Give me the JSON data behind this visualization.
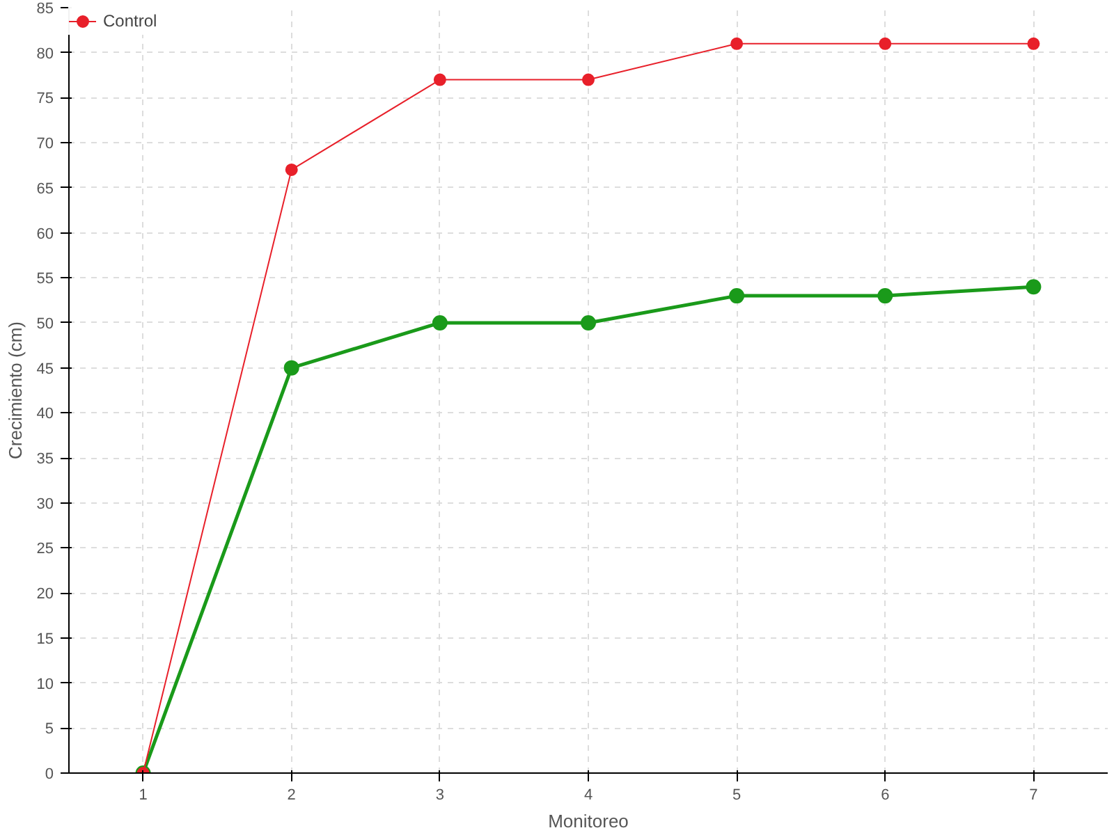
{
  "chart_data": {
    "type": "line",
    "xlabel": "Monitoreo",
    "ylabel": "Crecimiento (cm)",
    "x": [
      1,
      2,
      3,
      4,
      5,
      6,
      7
    ],
    "series": [
      {
        "color": "#1a9a1a",
        "values": [
          0,
          45,
          50,
          50,
          53,
          53,
          54
        ]
      },
      {
        "name": "Control",
        "color": "#e8202a",
        "values": [
          0,
          67,
          77,
          77,
          81,
          81,
          81
        ]
      }
    ],
    "xlim": [
      0.5,
      7.5
    ],
    "xticks": [
      1,
      2,
      3,
      4,
      5,
      6,
      7
    ],
    "ylim": [
      0,
      85
    ],
    "yticks": [
      0,
      5,
      10,
      15,
      20,
      25,
      30,
      35,
      40,
      45,
      50,
      55,
      60,
      65,
      70,
      75,
      80,
      85
    ],
    "grid": true,
    "legend": "top left",
    "marker": "circle",
    "line_style": "solid"
  }
}
